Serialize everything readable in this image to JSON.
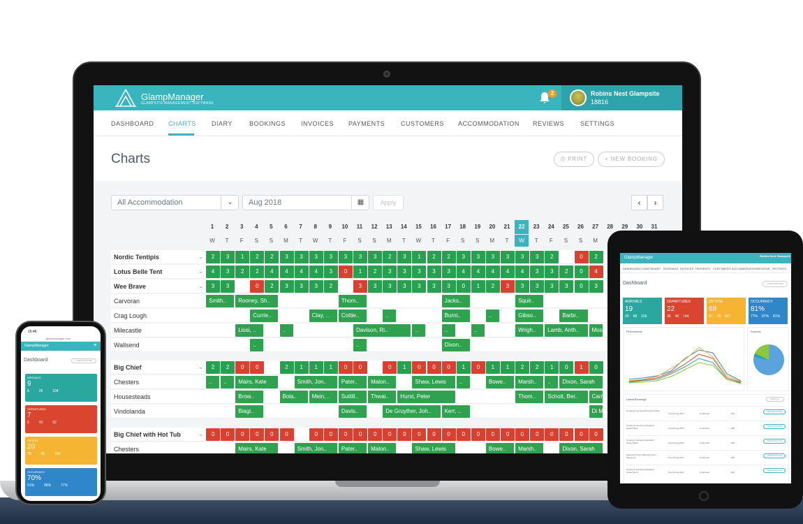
{
  "app": {
    "name": "GlampManager",
    "tagline": "GLAMPSITE MANAGEMENT SOFTWARE",
    "notifications": "2",
    "user_name": "Robins Nest Glampsite",
    "user_id": "18816"
  },
  "nav": [
    "DASHBOARD",
    "CHARTS",
    "DIARY",
    "BOOKINGS",
    "INVOICES",
    "PAYMENTS",
    "CUSTOMERS",
    "ACCOMMODATION",
    "REVIEWS",
    "SETTINGS"
  ],
  "page": {
    "title": "Charts",
    "print": "PRINT",
    "new_booking": "+ NEW BOOKING"
  },
  "filters": {
    "accommodation": "All Accommodation",
    "month": "Aug 2018",
    "apply": "Apply",
    "prev": "‹",
    "next": "›"
  },
  "days": [
    "1",
    "2",
    "3",
    "4",
    "5",
    "6",
    "7",
    "8",
    "9",
    "10",
    "11",
    "12",
    "13",
    "14",
    "15",
    "16",
    "17",
    "18",
    "19",
    "20",
    "21",
    "22",
    "23",
    "24",
    "25",
    "26",
    "27",
    "28",
    "29",
    "30",
    "31"
  ],
  "weekdays": [
    "W",
    "T",
    "F",
    "S",
    "S",
    "M",
    "T",
    "W",
    "T",
    "F",
    "S",
    "S",
    "M",
    "T",
    "W",
    "T",
    "F",
    "S",
    "S",
    "M",
    "T",
    "W",
    "T",
    "F",
    "S",
    "S",
    "M",
    "T",
    "W",
    "T",
    "F"
  ],
  "today_index": 21,
  "rows": [
    {
      "label": "Nordic Tentipis",
      "bold": true,
      "counts": [
        "2",
        "3",
        "1",
        "2",
        "2",
        "3",
        "3",
        "3",
        "3",
        "3",
        "3",
        "3",
        "2",
        "3",
        "1",
        "2",
        "2",
        "3",
        "3",
        "3",
        "3",
        "3",
        "3",
        "2",
        "1",
        "0",
        "2"
      ],
      "types": "gggggggggggggggggggggggglrg"
    },
    {
      "label": "Lotus Belle Tent",
      "bold": true,
      "counts": [
        "4",
        "3",
        "2",
        "2",
        "4",
        "4",
        "4",
        "4",
        "3",
        "0",
        "1",
        "2",
        "3",
        "3",
        "3",
        "3",
        "3",
        "4",
        "4",
        "4",
        "4",
        "4",
        "3",
        "3",
        "2",
        "0",
        "4"
      ],
      "types": "gggggggggrggggggggggggggggrg"
    },
    {
      "label": "Wee Brave",
      "bold": true,
      "counts": [
        "3",
        "3",
        "2",
        "0",
        "2",
        "3",
        "3",
        "3",
        "2",
        "0",
        "3",
        "3",
        "3",
        "3",
        "3",
        "3",
        "3",
        "0",
        "1",
        "2",
        "3",
        "3",
        "3",
        "3",
        "3",
        "0",
        "3"
      ],
      "types": "gglrggggglrgggggggggrggggggrg"
    },
    {
      "label": "Carvoran",
      "bold": false
    },
    {
      "label": "Crag Lough",
      "bold": false
    },
    {
      "label": "Milecastle",
      "bold": false
    },
    {
      "label": "Wallsend",
      "bold": false
    },
    {
      "label": "Big Chief",
      "bold": true,
      "counts": [
        "2",
        "2",
        "0",
        "0",
        "1",
        "2",
        "1",
        "1",
        "1",
        "0",
        "0",
        "1",
        "0",
        "1",
        "0",
        "0",
        "0",
        "1",
        "0",
        "1",
        "1",
        "2",
        "2",
        "1",
        "0",
        "1",
        "0"
      ],
      "types": "ggrrlggggrrlrgrrrgrggggggrgr"
    },
    {
      "label": "Chesters",
      "bold": false
    },
    {
      "label": "Housesteads",
      "bold": false
    },
    {
      "label": "Vindolanda",
      "bold": false
    },
    {
      "label": "Big Chief with Hot Tub",
      "bold": true,
      "counts": [
        "0",
        "0",
        "0",
        "0",
        "0",
        "0",
        "1",
        "0",
        "0",
        "0",
        "0",
        "0",
        "0",
        "0",
        "0",
        "0",
        "0",
        "0",
        "0",
        "0",
        "0",
        "0",
        "0",
        "0",
        "0",
        "0",
        "0"
      ],
      "types": "rrrrrrlrrrrrrrrrrrrrrrrrrrr"
    },
    {
      "label": "Chesters",
      "bold": false
    }
  ],
  "bookings": [
    {
      "row": 3,
      "start": 0,
      "len": 2,
      "name": "Smith.."
    },
    {
      "row": 3,
      "start": 2,
      "len": 3,
      "name": "Rooney, Sh.."
    },
    {
      "row": 3,
      "start": 9,
      "len": 2,
      "name": "Thom.."
    },
    {
      "row": 3,
      "start": 16,
      "len": 2,
      "name": "Jacks.."
    },
    {
      "row": 3,
      "start": 21,
      "len": 2,
      "name": "Squir.."
    },
    {
      "row": 4,
      "start": 3,
      "len": 2,
      "name": "Currie.."
    },
    {
      "row": 4,
      "start": 7,
      "len": 2,
      "name": "Clay, .."
    },
    {
      "row": 4,
      "start": 9,
      "len": 2,
      "name": "Cottie.."
    },
    {
      "row": 4,
      "start": 12,
      "len": 1,
      "name": ".."
    },
    {
      "row": 4,
      "start": 16,
      "len": 2,
      "name": "Burni.."
    },
    {
      "row": 4,
      "start": 19,
      "len": 1,
      "name": ".."
    },
    {
      "row": 4,
      "start": 21,
      "len": 2,
      "name": "Gibso.."
    },
    {
      "row": 4,
      "start": 24,
      "len": 2,
      "name": "Barbr.."
    },
    {
      "row": 5,
      "start": 2,
      "len": 2,
      "name": "Liosi, .."
    },
    {
      "row": 5,
      "start": 5,
      "len": 1,
      "name": ".."
    },
    {
      "row": 5,
      "start": 10,
      "len": 4,
      "name": "Davison, Ri.."
    },
    {
      "row": 5,
      "start": 14,
      "len": 1,
      "name": ".."
    },
    {
      "row": 5,
      "start": 16,
      "len": 1,
      "name": ".."
    },
    {
      "row": 5,
      "start": 18,
      "len": 1,
      "name": ".."
    },
    {
      "row": 5,
      "start": 21,
      "len": 2,
      "name": "Wrigh.."
    },
    {
      "row": 5,
      "start": 23,
      "len": 3,
      "name": "Lamb, Anth.."
    },
    {
      "row": 5,
      "start": 26,
      "len": 1,
      "name": "Mos.."
    },
    {
      "row": 6,
      "start": 3,
      "len": 1,
      "name": ".."
    },
    {
      "row": 6,
      "start": 10,
      "len": 1,
      "name": ".."
    },
    {
      "row": 6,
      "start": 16,
      "len": 2,
      "name": "Dixon.."
    },
    {
      "row": 8,
      "start": 0,
      "len": 1,
      "name": ".."
    },
    {
      "row": 8,
      "start": 1,
      "len": 1,
      "name": ".."
    },
    {
      "row": 8,
      "start": 2,
      "len": 3,
      "name": "Mairs, Kate"
    },
    {
      "row": 8,
      "start": 6,
      "len": 3,
      "name": "Smith, Jon.."
    },
    {
      "row": 8,
      "start": 9,
      "len": 2,
      "name": "Pater.."
    },
    {
      "row": 8,
      "start": 11,
      "len": 2,
      "name": "Malon.."
    },
    {
      "row": 8,
      "start": 14,
      "len": 3,
      "name": "Shaw, Lewis"
    },
    {
      "row": 8,
      "start": 17,
      "len": 1,
      "name": ".."
    },
    {
      "row": 8,
      "start": 19,
      "len": 2,
      "name": "Bowe.."
    },
    {
      "row": 8,
      "start": 21,
      "len": 2,
      "name": "Marsh.."
    },
    {
      "row": 8,
      "start": 23,
      "len": 1,
      "name": ".."
    },
    {
      "row": 8,
      "start": 24,
      "len": 3,
      "name": "Dixon, Sarah"
    },
    {
      "row": 9,
      "start": 2,
      "len": 2,
      "name": "Brow.."
    },
    {
      "row": 9,
      "start": 5,
      "len": 2,
      "name": "Bola.."
    },
    {
      "row": 9,
      "start": 7,
      "len": 2,
      "name": "Mein, .."
    },
    {
      "row": 9,
      "start": 9,
      "len": 2,
      "name": "Suttill.."
    },
    {
      "row": 9,
      "start": 11,
      "len": 2,
      "name": "Thwai.."
    },
    {
      "row": 9,
      "start": 13,
      "len": 4,
      "name": "Hurst, Peter"
    },
    {
      "row": 9,
      "start": 21,
      "len": 2,
      "name": "Thom.."
    },
    {
      "row": 9,
      "start": 23,
      "len": 3,
      "name": "Schott, Ber.."
    },
    {
      "row": 9,
      "start": 26,
      "len": 1,
      "name": "Carr.."
    },
    {
      "row": 10,
      "start": 2,
      "len": 2,
      "name": "Biagi.."
    },
    {
      "row": 10,
      "start": 9,
      "len": 2,
      "name": "Davis.."
    },
    {
      "row": 10,
      "start": 12,
      "len": 4,
      "name": "De Gruyther, Joh.."
    },
    {
      "row": 10,
      "start": 16,
      "len": 2,
      "name": "Kerr, .."
    },
    {
      "row": 10,
      "start": 26,
      "len": 1,
      "name": "Di M.."
    },
    {
      "row": 12,
      "start": 2,
      "len": 3,
      "name": "Mairs, Kate"
    },
    {
      "row": 12,
      "start": 6,
      "len": 3,
      "name": "Smith, Jon.."
    },
    {
      "row": 12,
      "start": 9,
      "len": 2,
      "name": "Pater.."
    },
    {
      "row": 12,
      "start": 11,
      "len": 2,
      "name": "Malon.."
    },
    {
      "row": 12,
      "start": 14,
      "len": 3,
      "name": "Shaw, Lewis"
    },
    {
      "row": 12,
      "start": 19,
      "len": 2,
      "name": "Bowe.."
    },
    {
      "row": 12,
      "start": 21,
      "len": 2,
      "name": "Marsh.."
    },
    {
      "row": 12,
      "start": 24,
      "len": 3,
      "name": "Dixon, Sarah"
    }
  ],
  "tablet": {
    "title": "Dashboard",
    "new_booking": "+ NEW BOOKING",
    "cards": [
      {
        "label": "ARRIVALS",
        "value": "19",
        "sub": [
          "20",
          "68",
          "156"
        ],
        "color": "#2aa8a0"
      },
      {
        "label": "DEPARTURES",
        "value": "22",
        "sub": [
          "36",
          "49",
          "144"
        ],
        "color": "#d9452f"
      },
      {
        "label": "ON SITE",
        "value": "68",
        "sub": [
          "57",
          "79",
          "477"
        ],
        "color": "#f5b532"
      },
      {
        "label": "OCCUPANCY",
        "value": "81%",
        "sub": [
          "77%",
          "87%",
          "81%"
        ],
        "color": "#2f86c8"
      }
    ],
    "performance": "Performance",
    "sources": "Sources",
    "latest": "Latest Bookings",
    "view_all": "VIEW ALL",
    "bookings": [
      {
        "name": "Touring & Camping (Premium Pitch)",
        "date": "Tue 24 Aug 2017",
        "status": "Confirmed",
        "total": "£16"
      },
      {
        "name": "Touring & Camping (Standard Grass Pitch)",
        "date": "Tue 24 Aug 2017",
        "status": "Confirmed",
        "total": "£38"
      },
      {
        "name": "Touring & Camping (Standard Grass Pitch)",
        "date": "Tue 24 Aug 2017",
        "status": "Confirmed",
        "total": "£30"
      },
      {
        "name": "Glamping Tents (Glamping Tent - Sleeps 4)",
        "date": "Tue 24 Aug 2017",
        "status": "Confirmed",
        "total": "£45"
      },
      {
        "name": "Touring & Camping (Standard Grass Pitch)",
        "date": "Tue 24 Aug 2017",
        "status": "Confirmed",
        "total": "£30"
      }
    ],
    "view_booking": "VIEW BOOKING"
  },
  "phone": {
    "time": "15:46",
    "url": "glampmanager.com",
    "title": "Dashboard",
    "new_booking": "+ NEW BOOKING",
    "cards": [
      {
        "label": "ARRIVALS",
        "value": "9",
        "sub": [
          "8",
          "25",
          "104"
        ],
        "color": "#2aa8a0"
      },
      {
        "label": "DEPARTURES",
        "value": "7",
        "sub": [
          "6",
          "43",
          "52"
        ],
        "color": "#d9452f"
      },
      {
        "label": "ON SITE",
        "value": "20",
        "sub": [
          "78",
          "83",
          "150"
        ],
        "color": "#f5b532"
      },
      {
        "label": "OCCUPANCY",
        "value": "70%",
        "sub": [
          "51%",
          "98%",
          "77%"
        ],
        "color": "#2f86c8"
      }
    ]
  }
}
